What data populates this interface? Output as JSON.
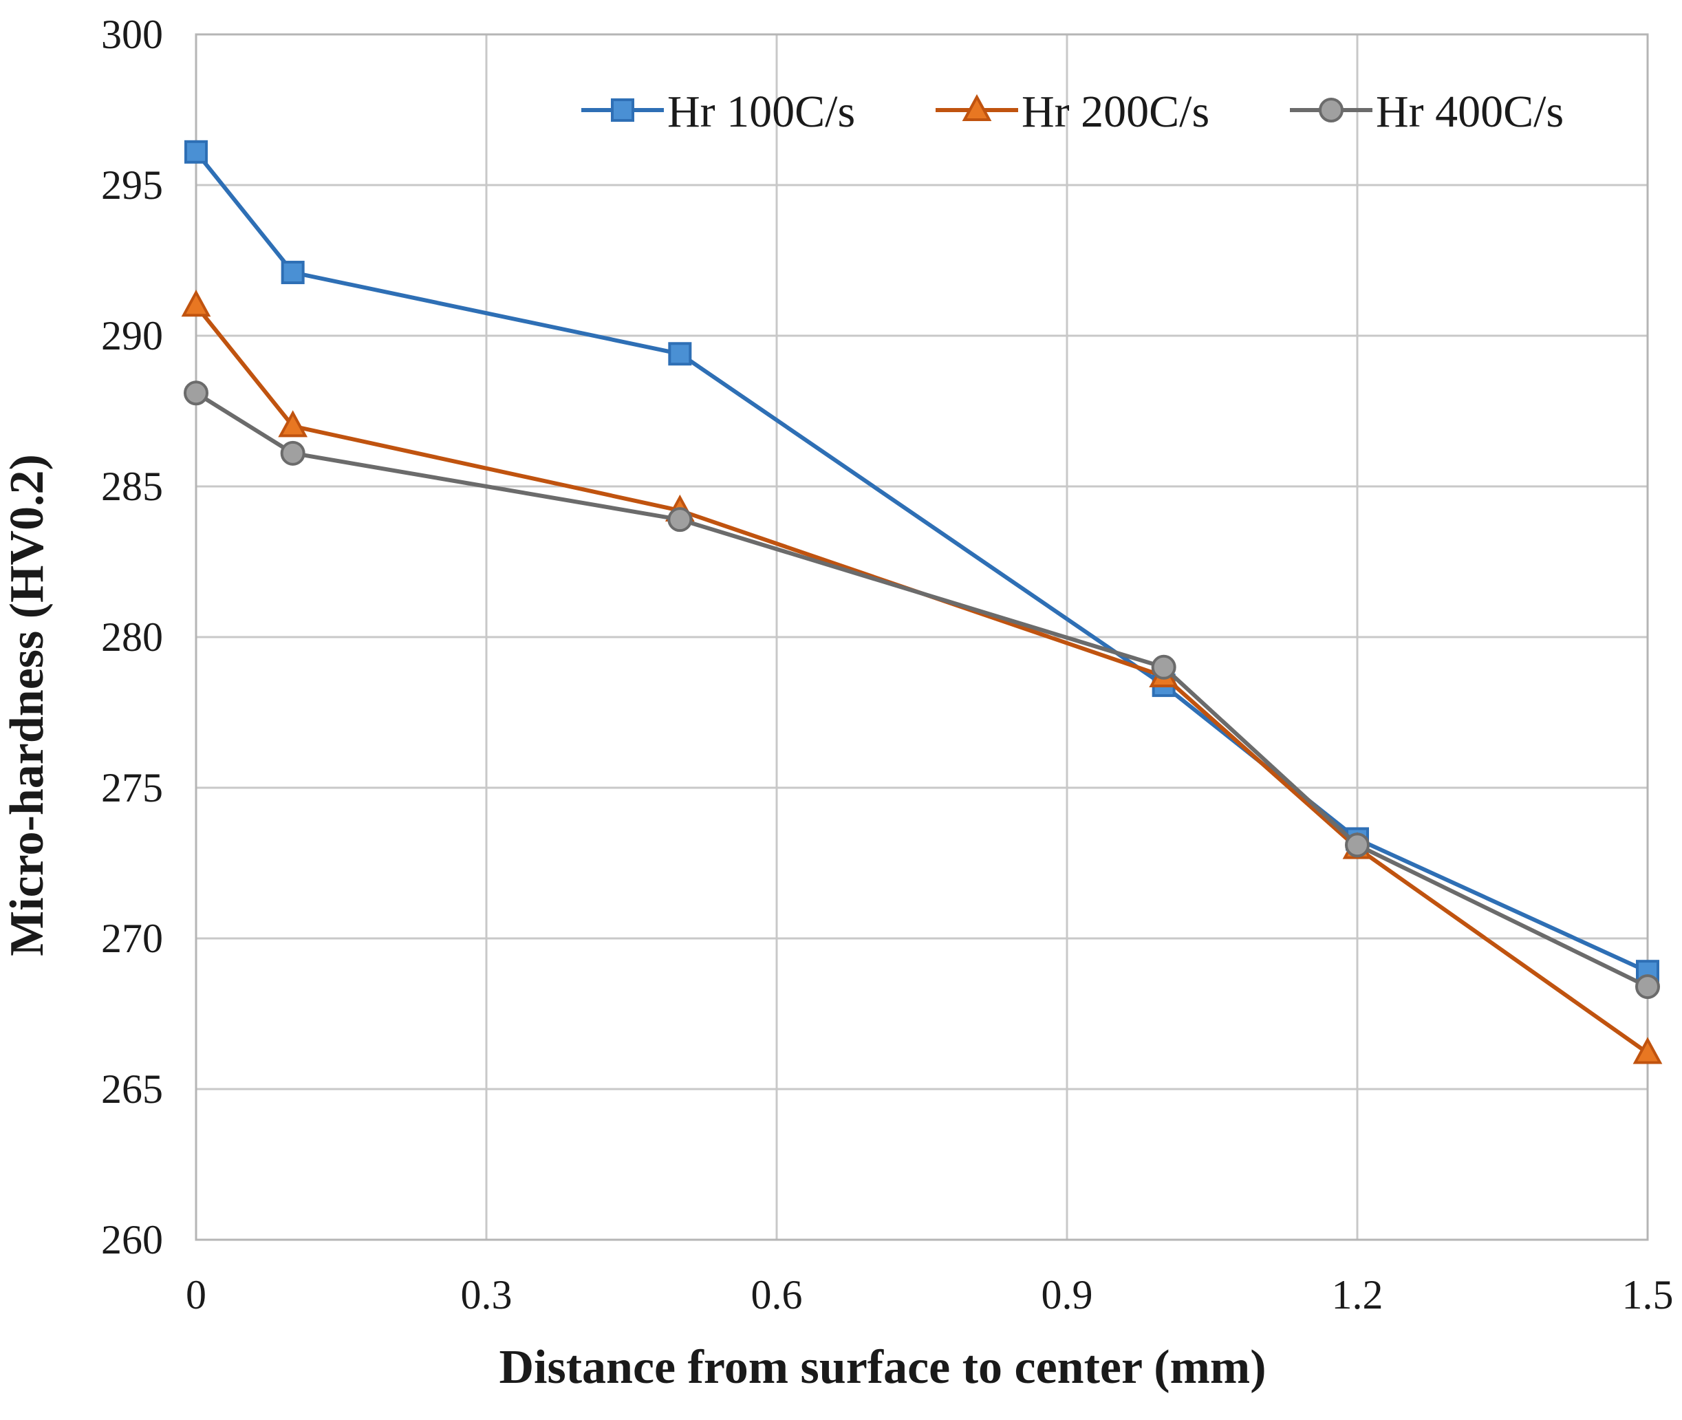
{
  "chart_data": {
    "type": "line",
    "title": "",
    "xlabel": "Distance from surface to center (mm)",
    "ylabel": "Micro-hardness (HV0.2)",
    "xlim": [
      0,
      1.5
    ],
    "ylim": [
      260,
      300
    ],
    "x_ticks": [
      0,
      0.3,
      0.6,
      0.9,
      1.2,
      1.5
    ],
    "x_tick_labels": [
      "0",
      "0.3",
      "0.6",
      "0.9",
      "1.2",
      "1.5"
    ],
    "y_ticks": [
      260,
      265,
      270,
      275,
      280,
      285,
      290,
      295,
      300
    ],
    "y_tick_labels": [
      "260",
      "265",
      "270",
      "275",
      "280",
      "285",
      "290",
      "295",
      "300"
    ],
    "grid": true,
    "legend_position": "top-right",
    "series": [
      {
        "name": "Hr 100C/s",
        "color": "#2e6fb5",
        "marker_fill": "#4a90d4",
        "marker": "square",
        "x": [
          0,
          0.1,
          0.5,
          1.0,
          1.2,
          1.5
        ],
        "y": [
          296.1,
          292.1,
          289.4,
          278.4,
          273.3,
          268.9
        ]
      },
      {
        "name": "Hr 200C/s",
        "color": "#c0530f",
        "marker_fill": "#e87722",
        "marker": "triangle",
        "x": [
          0,
          0.1,
          0.5,
          1.0,
          1.2,
          1.5
        ],
        "y": [
          291.0,
          287.0,
          284.2,
          278.7,
          273.0,
          266.2
        ]
      },
      {
        "name": "Hr 400C/s",
        "color": "#6b6b6b",
        "marker_fill": "#a0a0a0",
        "marker": "circle",
        "x": [
          0,
          0.1,
          0.5,
          1.0,
          1.2,
          1.5
        ],
        "y": [
          288.1,
          286.1,
          283.9,
          279.0,
          273.1,
          268.4
        ]
      }
    ]
  }
}
